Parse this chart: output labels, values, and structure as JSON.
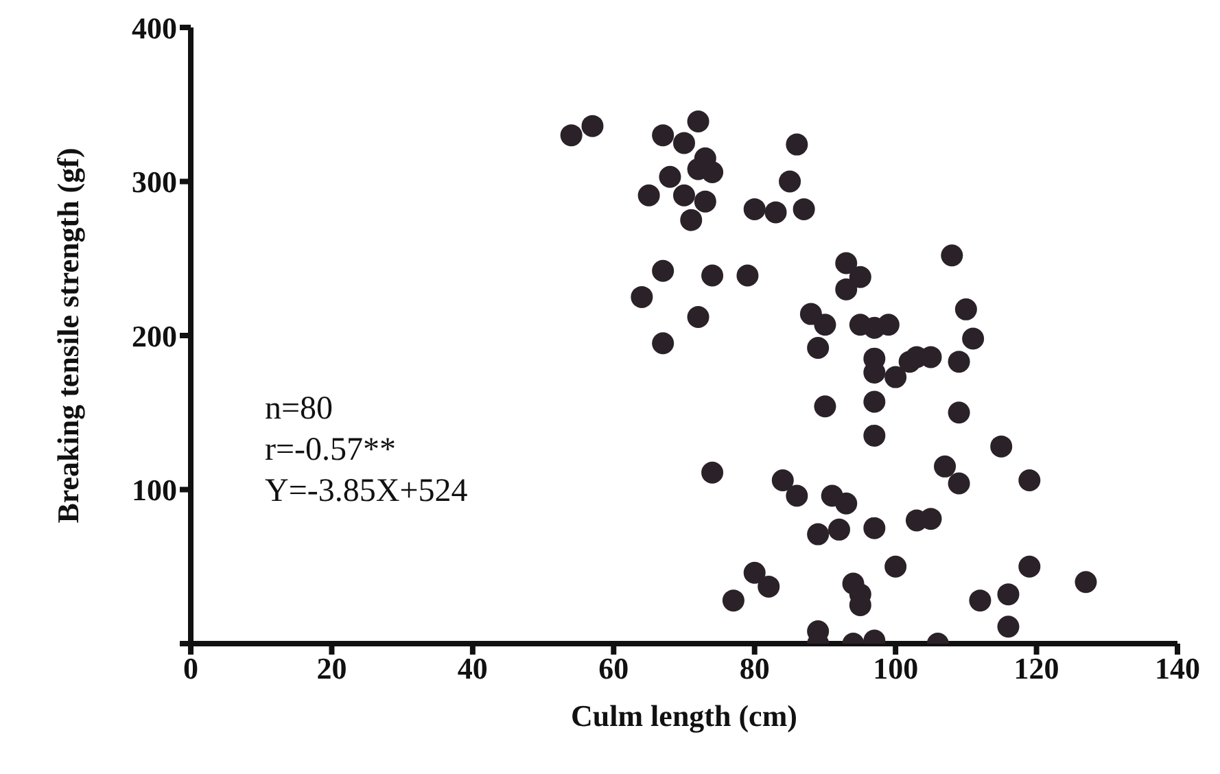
{
  "chart_data": {
    "type": "scatter",
    "xlabel": "Culm length (cm)",
    "ylabel": "Breaking tensile strength (gf)",
    "annotations": [
      "n=80",
      "r=-0.57**",
      "Y=-3.85X+524"
    ],
    "xlim": [
      0,
      140
    ],
    "xticks": [
      0,
      20,
      40,
      60,
      80,
      100,
      120,
      140
    ],
    "ylim": [
      0,
      400
    ],
    "yticks": [
      {
        "value": 0,
        "label": null
      },
      100,
      200,
      300,
      400
    ],
    "grid": false,
    "legend": false,
    "marker": "circle",
    "series": [
      {
        "color": "#2a2228",
        "x": [
          54,
          57,
          67,
          70,
          72,
          73,
          72,
          74,
          68,
          65,
          70,
          73,
          71,
          80,
          83,
          86,
          85,
          87,
          67,
          64,
          74,
          79,
          72,
          67,
          93,
          95,
          93,
          108,
          88,
          90,
          89,
          95,
          97,
          99,
          97,
          97,
          100,
          102,
          105,
          103,
          110,
          111,
          109,
          90,
          97,
          97,
          109,
          115,
          74,
          84,
          86,
          91,
          93,
          107,
          109,
          119,
          89,
          92,
          97,
          103,
          105,
          100,
          80,
          82,
          77,
          94,
          95,
          95,
          119,
          127,
          112,
          116,
          116,
          89,
          89,
          94,
          97,
          106
        ],
        "values": [
          330,
          336,
          330,
          325,
          339,
          315,
          308,
          306,
          303,
          291,
          291,
          287,
          275,
          282,
          280,
          324,
          300,
          282,
          242,
          225,
          239,
          239,
          212,
          195,
          247,
          238,
          230,
          252,
          214,
          207,
          192,
          207,
          205,
          207,
          185,
          176,
          173,
          183,
          186,
          186,
          217,
          198,
          183,
          154,
          157,
          135,
          150,
          128,
          111,
          106,
          96,
          96,
          91,
          115,
          104,
          106,
          71,
          74,
          75,
          80,
          81,
          50,
          46,
          37,
          28,
          39,
          32,
          25,
          50,
          40,
          28,
          32,
          11,
          8,
          0,
          0,
          2,
          0
        ]
      }
    ]
  }
}
